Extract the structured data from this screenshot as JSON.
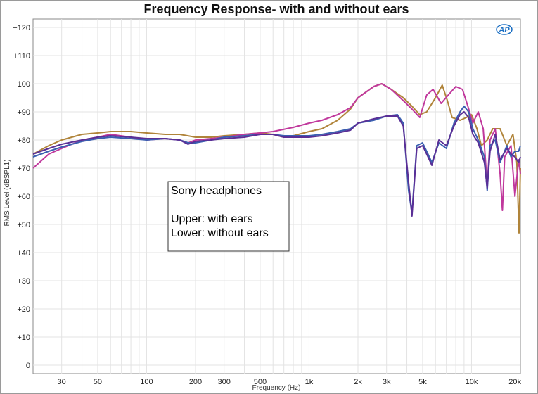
{
  "chart_data": {
    "type": "line",
    "title": "Frequency Response- with and without ears",
    "xlabel": "Frequency (Hz)",
    "ylabel": "RMS Level (dBSPL1)",
    "x_scale": "log",
    "xlim": [
      20,
      20000
    ],
    "ylim": [
      -3,
      123
    ],
    "grid": true,
    "x_ticks": [
      {
        "value": 30,
        "label": "30"
      },
      {
        "value": 50,
        "label": "50"
      },
      {
        "value": 100,
        "label": "100"
      },
      {
        "value": 200,
        "label": "200"
      },
      {
        "value": 300,
        "label": "300"
      },
      {
        "value": 500,
        "label": "500"
      },
      {
        "value": 1000,
        "label": "1k"
      },
      {
        "value": 2000,
        "label": "2k"
      },
      {
        "value": 3000,
        "label": "3k"
      },
      {
        "value": 5000,
        "label": "5k"
      },
      {
        "value": 10000,
        "label": "10k"
      },
      {
        "value": 20000,
        "label": "20k"
      }
    ],
    "y_ticks": [
      {
        "value": 120,
        "label": "+120"
      },
      {
        "value": 110,
        "label": "+110"
      },
      {
        "value": 100,
        "label": "+100"
      },
      {
        "value": 90,
        "label": "+90"
      },
      {
        "value": 80,
        "label": "+80"
      },
      {
        "value": 70,
        "label": "+70"
      },
      {
        "value": 60,
        "label": "+60"
      },
      {
        "value": 50,
        "label": "+50"
      },
      {
        "value": 40,
        "label": "+40"
      },
      {
        "value": 30,
        "label": "+30"
      },
      {
        "value": 20,
        "label": "+20"
      },
      {
        "value": 10,
        "label": "+10"
      },
      {
        "value": 0,
        "label": "0"
      }
    ],
    "annotation_lines": [
      "Sony headphones",
      "",
      "Upper: with ears",
      "Lower: without ears"
    ],
    "series": [
      {
        "color": "#b0843a",
        "points": [
          [
            20,
            75
          ],
          [
            25,
            78
          ],
          [
            30,
            80
          ],
          [
            40,
            82
          ],
          [
            50,
            82.5
          ],
          [
            60,
            83
          ],
          [
            80,
            83
          ],
          [
            100,
            82.5
          ],
          [
            130,
            82
          ],
          [
            160,
            82
          ],
          [
            200,
            81
          ],
          [
            250,
            81
          ],
          [
            300,
            81.5
          ],
          [
            400,
            82
          ],
          [
            500,
            82.5
          ],
          [
            600,
            82
          ],
          [
            700,
            81
          ],
          [
            800,
            81.5
          ],
          [
            1000,
            83
          ],
          [
            1200,
            84
          ],
          [
            1500,
            87
          ],
          [
            1800,
            91
          ],
          [
            2000,
            95
          ],
          [
            2500,
            99
          ],
          [
            2800,
            100
          ],
          [
            3200,
            98
          ],
          [
            3800,
            95
          ],
          [
            4300,
            92
          ],
          [
            4800,
            89
          ],
          [
            5300,
            90
          ],
          [
            6000,
            95
          ],
          [
            6600,
            99.5
          ],
          [
            7100,
            94
          ],
          [
            7600,
            88
          ],
          [
            8500,
            87
          ],
          [
            9300,
            88
          ],
          [
            10000,
            89
          ],
          [
            10800,
            84
          ],
          [
            11500,
            78
          ],
          [
            12500,
            80
          ],
          [
            13500,
            84
          ],
          [
            15000,
            84
          ],
          [
            16500,
            78
          ],
          [
            18000,
            82
          ],
          [
            19000,
            72
          ],
          [
            19600,
            47
          ],
          [
            20000,
            70
          ]
        ]
      },
      {
        "color": "#c0389c",
        "points": [
          [
            20,
            70
          ],
          [
            25,
            75
          ],
          [
            30,
            77
          ],
          [
            40,
            80
          ],
          [
            50,
            81
          ],
          [
            60,
            82
          ],
          [
            80,
            81
          ],
          [
            100,
            80
          ],
          [
            130,
            80.5
          ],
          [
            160,
            80
          ],
          [
            180,
            79
          ],
          [
            200,
            80
          ],
          [
            250,
            80.5
          ],
          [
            300,
            81
          ],
          [
            400,
            82
          ],
          [
            500,
            82.5
          ],
          [
            600,
            83
          ],
          [
            800,
            84.5
          ],
          [
            1000,
            86
          ],
          [
            1200,
            87
          ],
          [
            1500,
            89
          ],
          [
            1800,
            91.5
          ],
          [
            2000,
            95
          ],
          [
            2500,
            99
          ],
          [
            2800,
            100
          ],
          [
            3200,
            98
          ],
          [
            3800,
            94
          ],
          [
            4300,
            91
          ],
          [
            4800,
            88
          ],
          [
            5300,
            96
          ],
          [
            5800,
            98
          ],
          [
            6500,
            93
          ],
          [
            7200,
            96
          ],
          [
            8000,
            99
          ],
          [
            8800,
            98
          ],
          [
            9500,
            92
          ],
          [
            10200,
            86
          ],
          [
            11000,
            90
          ],
          [
            11800,
            84
          ],
          [
            12500,
            64
          ],
          [
            13000,
            80
          ],
          [
            14000,
            84
          ],
          [
            15000,
            68
          ],
          [
            15500,
            55
          ],
          [
            16000,
            74
          ],
          [
            17500,
            78
          ],
          [
            18500,
            60
          ],
          [
            19500,
            73
          ],
          [
            20000,
            68
          ]
        ]
      },
      {
        "color": "#3a5fb0",
        "points": [
          [
            20,
            74
          ],
          [
            25,
            76
          ],
          [
            30,
            77.5
          ],
          [
            40,
            79.5
          ],
          [
            50,
            80.5
          ],
          [
            60,
            81
          ],
          [
            80,
            80.5
          ],
          [
            100,
            80
          ],
          [
            130,
            80.5
          ],
          [
            160,
            80
          ],
          [
            180,
            79
          ],
          [
            200,
            79
          ],
          [
            250,
            80
          ],
          [
            300,
            81
          ],
          [
            400,
            81.5
          ],
          [
            500,
            82
          ],
          [
            600,
            82
          ],
          [
            700,
            81.5
          ],
          [
            800,
            81.5
          ],
          [
            1000,
            81.5
          ],
          [
            1200,
            82
          ],
          [
            1500,
            83
          ],
          [
            1800,
            84
          ],
          [
            2000,
            86
          ],
          [
            2500,
            87
          ],
          [
            3000,
            88.5
          ],
          [
            3500,
            89
          ],
          [
            3800,
            86
          ],
          [
            4100,
            62
          ],
          [
            4300,
            54
          ],
          [
            4600,
            78
          ],
          [
            5000,
            79
          ],
          [
            5400,
            75
          ],
          [
            5700,
            72
          ],
          [
            6300,
            79
          ],
          [
            7000,
            77
          ],
          [
            7800,
            86
          ],
          [
            8500,
            90
          ],
          [
            9000,
            92
          ],
          [
            9600,
            90
          ],
          [
            10200,
            84
          ],
          [
            11000,
            80
          ],
          [
            12000,
            74
          ],
          [
            12500,
            62
          ],
          [
            13000,
            78
          ],
          [
            14000,
            80
          ],
          [
            15000,
            72
          ],
          [
            16500,
            78
          ],
          [
            17500,
            74
          ],
          [
            18500,
            76
          ],
          [
            19500,
            76
          ],
          [
            20000,
            78
          ]
        ]
      },
      {
        "color": "#5a2f96",
        "points": [
          [
            20,
            75
          ],
          [
            25,
            77
          ],
          [
            30,
            78.5
          ],
          [
            40,
            80
          ],
          [
            50,
            81
          ],
          [
            60,
            81.5
          ],
          [
            80,
            81
          ],
          [
            100,
            80.5
          ],
          [
            130,
            80.5
          ],
          [
            160,
            80
          ],
          [
            180,
            78.5
          ],
          [
            200,
            79.5
          ],
          [
            250,
            80
          ],
          [
            300,
            80.5
          ],
          [
            400,
            81
          ],
          [
            500,
            82
          ],
          [
            600,
            82
          ],
          [
            700,
            81
          ],
          [
            800,
            81
          ],
          [
            1000,
            81
          ],
          [
            1200,
            81.5
          ],
          [
            1500,
            82.5
          ],
          [
            1800,
            83.5
          ],
          [
            2000,
            86
          ],
          [
            2500,
            87.5
          ],
          [
            3000,
            88.5
          ],
          [
            3500,
            88.5
          ],
          [
            3800,
            85
          ],
          [
            4100,
            65
          ],
          [
            4300,
            53
          ],
          [
            4600,
            77
          ],
          [
            5000,
            78
          ],
          [
            5400,
            74
          ],
          [
            5700,
            71
          ],
          [
            6300,
            80
          ],
          [
            7000,
            78
          ],
          [
            7800,
            85
          ],
          [
            8500,
            89
          ],
          [
            9000,
            90
          ],
          [
            9600,
            88
          ],
          [
            10200,
            82
          ],
          [
            11000,
            79
          ],
          [
            12000,
            72
          ],
          [
            12500,
            63
          ],
          [
            13000,
            76
          ],
          [
            14000,
            82
          ],
          [
            15000,
            73
          ],
          [
            16500,
            77
          ],
          [
            17500,
            75
          ],
          [
            18500,
            74
          ],
          [
            19500,
            72
          ],
          [
            20000,
            74
          ]
        ]
      }
    ]
  }
}
